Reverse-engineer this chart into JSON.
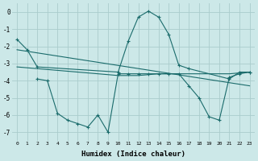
{
  "bg_color": "#cce8e8",
  "grid_color": "#aacccc",
  "line_color": "#1a6b6b",
  "xlabel": "Humidex (Indice chaleur)",
  "xlim": [
    -0.5,
    23.5
  ],
  "ylim": [
    -7.5,
    0.5
  ],
  "yticks": [
    0,
    -1,
    -2,
    -3,
    -4,
    -5,
    -6,
    -7
  ],
  "xticks": [
    0,
    1,
    2,
    3,
    4,
    5,
    6,
    7,
    8,
    9,
    10,
    11,
    12,
    13,
    14,
    15,
    16,
    17,
    18,
    19,
    20,
    21,
    22,
    23
  ],
  "line1_x": [
    0,
    1,
    2,
    10,
    11,
    12,
    13,
    14,
    15,
    16,
    17,
    21,
    22,
    23
  ],
  "line1_y": [
    -1.6,
    -2.2,
    -3.2,
    -3.5,
    -1.7,
    -0.3,
    0.05,
    -0.3,
    -1.3,
    -3.1,
    -3.3,
    -3.9,
    -3.5,
    -3.5
  ],
  "line2_x": [
    0,
    1,
    2,
    3,
    4,
    5,
    6,
    7,
    8,
    9,
    10,
    11,
    12,
    13,
    14,
    15,
    16,
    17,
    18,
    19,
    20,
    21,
    22,
    23
  ],
  "line2_y": [
    -3.2,
    -3.25,
    -3.3,
    -3.35,
    -3.4,
    -3.45,
    -3.5,
    -3.55,
    -3.6,
    -3.65,
    -3.7,
    -3.7,
    -3.7,
    -3.65,
    -3.6,
    -3.6,
    -3.6,
    -3.6,
    -3.6,
    -3.6,
    -3.6,
    -3.6,
    -3.55,
    -3.5
  ],
  "line3_x": [
    0,
    23
  ],
  "line3_y": [
    -2.2,
    -4.3
  ],
  "line4_x": [
    2,
    3,
    4,
    5,
    6,
    7,
    8,
    9,
    10,
    11,
    12,
    13,
    14,
    15,
    16,
    17,
    18,
    19,
    20,
    21,
    22,
    23
  ],
  "line4_y": [
    -3.9,
    -4.0,
    -5.9,
    -6.3,
    -6.5,
    -6.7,
    -6.0,
    -7.0,
    -3.6,
    -3.6,
    -3.6,
    -3.6,
    -3.6,
    -3.6,
    -3.6,
    -4.3,
    -5.0,
    -6.1,
    -6.3,
    -3.8,
    -3.6,
    -3.5
  ]
}
